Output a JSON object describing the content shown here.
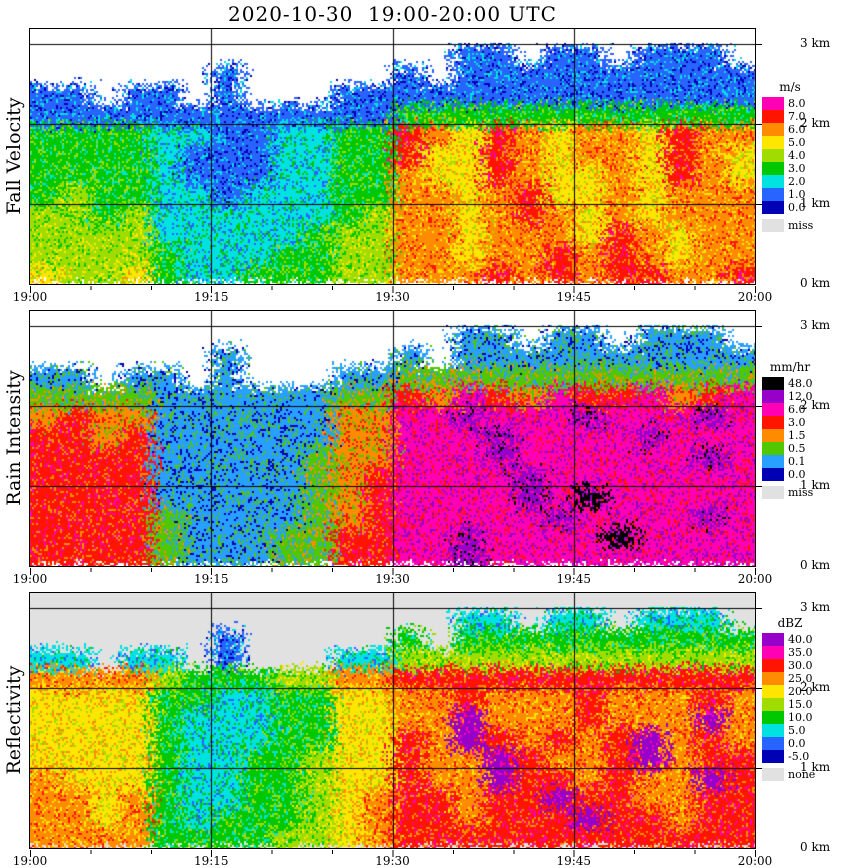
{
  "title": "2020-10-30  19:00-20:00 UTC",
  "chart_data": {
    "type": "heatmap",
    "title": "2020-10-30  19:00-20:00 UTC",
    "x_ticks": [
      "19:00",
      "19:15",
      "19:30",
      "19:45",
      "20:00"
    ],
    "x_minor_tick_interval_min": 5,
    "y_ticks": [
      "3 km",
      "2 km",
      "1 km",
      "0 km"
    ],
    "time_range_minutes": 60,
    "height_range_km": [
      0,
      3.2
    ],
    "grid_cols": 24,
    "grid_rows": 12,
    "col_minutes": 2.5,
    "row_km": 0.25,
    "no_data_value": -99,
    "panels": [
      {
        "name": "fall_velocity",
        "label": "Fall Velocity",
        "units": "m/s",
        "empty_color": "#ffffff",
        "missing_label": "miss",
        "missing_color": "#e1e1e1",
        "legend": [
          {
            "label": "8.0",
            "color": "#ff00b4"
          },
          {
            "label": "7.0",
            "color": "#ff1400"
          },
          {
            "label": "6.0",
            "color": "#ff8c00"
          },
          {
            "label": "5.0",
            "color": "#ffe600"
          },
          {
            "label": "4.0",
            "color": "#a0dc00"
          },
          {
            "label": "3.0",
            "color": "#00c800"
          },
          {
            "label": "2.0",
            "color": "#00e1e1"
          },
          {
            "label": "1.0",
            "color": "#2864ff"
          },
          {
            "label": "0.0",
            "color": "#0000b4"
          }
        ],
        "grid": [
          [
            -99,
            -99,
            -99,
            -99,
            -99,
            -99,
            -99,
            -99,
            -99,
            -99,
            -99,
            -99,
            -99,
            -99,
            1,
            1,
            -99,
            1,
            1,
            -99,
            1,
            1,
            1,
            -99
          ],
          [
            -99,
            -99,
            -99,
            -99,
            -99,
            -99,
            1,
            -99,
            -99,
            -99,
            -99,
            -99,
            1,
            -99,
            1,
            1,
            1,
            1,
            1,
            1,
            1,
            1,
            1,
            1
          ],
          [
            1,
            1,
            -99,
            1,
            1,
            -99,
            1,
            -99,
            -99,
            -99,
            1,
            1,
            1,
            1,
            1,
            1,
            1,
            1,
            1,
            1,
            1,
            1,
            1,
            1
          ],
          [
            1.5,
            1.5,
            1.5,
            1.5,
            1,
            1,
            1,
            1,
            1,
            1,
            1.5,
            1.5,
            3,
            3,
            3,
            3,
            3,
            3,
            3,
            3,
            3,
            3,
            3,
            3
          ],
          [
            3,
            3,
            3,
            3,
            2,
            2,
            1.5,
            1.5,
            2,
            2,
            3,
            3,
            7,
            6,
            5.5,
            7,
            6,
            5.5,
            6,
            6,
            5.5,
            7,
            6.5,
            6
          ],
          [
            3,
            3.5,
            3,
            3.2,
            2,
            1.5,
            1.5,
            1.5,
            2,
            2,
            3,
            3.2,
            7,
            5.5,
            5,
            7,
            6,
            5,
            6,
            6,
            5,
            7,
            6.5,
            5.5
          ],
          [
            3.5,
            3.5,
            3,
            3.5,
            2,
            1.5,
            1.5,
            1.5,
            2,
            2.5,
            3,
            3.5,
            6.5,
            5.5,
            5,
            7,
            6.5,
            5,
            5.5,
            6,
            5,
            7,
            6,
            5.5
          ],
          [
            3.5,
            4,
            3.5,
            3.5,
            2.5,
            2,
            1.5,
            2,
            2,
            2.5,
            3.5,
            3.5,
            6.5,
            6,
            5,
            6.5,
            7,
            5.5,
            5.5,
            6.5,
            5,
            6.5,
            6,
            6
          ],
          [
            4,
            4,
            3.5,
            4,
            2.5,
            2,
            2,
            2,
            2.5,
            2.5,
            3.5,
            4,
            6,
            6.5,
            5,
            6,
            7,
            6,
            5.5,
            6.5,
            5.5,
            6,
            6.5,
            6
          ],
          [
            4,
            4.5,
            4,
            4,
            2.5,
            2,
            2,
            2.5,
            2.5,
            3,
            4,
            4,
            6,
            6.5,
            5.5,
            6,
            6.5,
            6.5,
            5.5,
            7,
            6,
            5.5,
            6.5,
            6
          ],
          [
            4.5,
            4.5,
            4,
            4.5,
            3,
            2.5,
            2,
            2.5,
            3,
            3,
            4,
            4.5,
            6.5,
            6,
            5.5,
            6.5,
            6,
            7,
            6,
            7,
            6.5,
            5.5,
            6,
            6.5
          ],
          [
            5,
            4.5,
            4.5,
            5,
            3,
            2.5,
            2.5,
            3,
            3,
            3,
            4.5,
            4.5,
            6.5,
            6,
            6,
            7,
            6,
            7,
            6.5,
            7,
            7,
            6,
            6,
            7
          ]
        ]
      },
      {
        "name": "rain_intensity",
        "label": "Rain Intensity",
        "units": "mm/hr",
        "empty_color": "#ffffff",
        "missing_label": "miss",
        "missing_color": "#e1e1e1",
        "legend": [
          {
            "label": "48.0",
            "color": "#000000"
          },
          {
            "label": "12.0",
            "color": "#9600c8"
          },
          {
            "label": "6.0",
            "color": "#ff00b4"
          },
          {
            "label": "3.0",
            "color": "#ff1400"
          },
          {
            "label": "1.5",
            "color": "#ff8c00"
          },
          {
            "label": "0.5",
            "color": "#50c800"
          },
          {
            "label": "0.1",
            "color": "#28a0ff"
          },
          {
            "label": "0.0",
            "color": "#0000b4"
          }
        ],
        "grid": [
          [
            -99,
            -99,
            -99,
            -99,
            -99,
            -99,
            -99,
            -99,
            -99,
            -99,
            -99,
            -99,
            -99,
            -99,
            0.3,
            0.3,
            -99,
            0.3,
            0.3,
            -99,
            0.3,
            0.3,
            0.3,
            -99
          ],
          [
            -99,
            -99,
            -99,
            -99,
            -99,
            -99,
            0.2,
            -99,
            -99,
            -99,
            -99,
            -99,
            0.3,
            -99,
            0.3,
            0.3,
            0.3,
            0.3,
            0.3,
            0.3,
            0.3,
            0.3,
            0.3,
            0.3
          ],
          [
            0.3,
            0.3,
            -99,
            0.3,
            0.3,
            -99,
            0.2,
            -99,
            -99,
            -99,
            0.3,
            0.3,
            0.7,
            0.7,
            0.7,
            0.7,
            0.7,
            0.7,
            0.7,
            0.7,
            0.7,
            0.7,
            0.7,
            0.7
          ],
          [
            1,
            1,
            1,
            1,
            0.3,
            0.3,
            0.2,
            0.2,
            0.3,
            0.3,
            1,
            1,
            4,
            2,
            6,
            4,
            2,
            6,
            3,
            4,
            6,
            2,
            4,
            6
          ],
          [
            2.5,
            3.5,
            2.5,
            2,
            0.3,
            0.2,
            0.15,
            0.15,
            0.2,
            0.3,
            1.5,
            2,
            9,
            7,
            14,
            8,
            6,
            9,
            13,
            8,
            7,
            6,
            14,
            8
          ],
          [
            3.5,
            4,
            2.5,
            3,
            0.3,
            0.2,
            0.15,
            0.2,
            0.2,
            0.4,
            1.5,
            2.5,
            9,
            7,
            8,
            14,
            7,
            9,
            8,
            8,
            14,
            7,
            9,
            8
          ],
          [
            4,
            3.5,
            3,
            3.5,
            0.3,
            0.2,
            0.15,
            0.2,
            0.3,
            0.5,
            2,
            2.5,
            9,
            8,
            7,
            14,
            8,
            9,
            7,
            9,
            8,
            7,
            14,
            9
          ],
          [
            4,
            4,
            3.5,
            3.5,
            0.4,
            0.2,
            0.2,
            0.2,
            0.3,
            0.6,
            2,
            3,
            9,
            8,
            7,
            9,
            14,
            8,
            8,
            9,
            7,
            8,
            9,
            8
          ],
          [
            4,
            4.5,
            3.5,
            4,
            0.4,
            0.3,
            0.2,
            0.3,
            0.4,
            0.7,
            2.5,
            3,
            9,
            8,
            8,
            9,
            14,
            9,
            50,
            9,
            8,
            8,
            9,
            9
          ],
          [
            4,
            4.5,
            4,
            4,
            0.5,
            0.3,
            0.2,
            0.3,
            0.4,
            0.8,
            2.5,
            3,
            9,
            9,
            8,
            9,
            8,
            14,
            9,
            9,
            8,
            9,
            14,
            9
          ],
          [
            4.5,
            4,
            4,
            4.5,
            0.5,
            0.3,
            0.3,
            0.4,
            0.5,
            1,
            3,
            3,
            9,
            8,
            14,
            9,
            8,
            9,
            9,
            50,
            9,
            8,
            9,
            9
          ],
          [
            4.5,
            4,
            4,
            4,
            0.6,
            0.4,
            0.3,
            0.4,
            0.6,
            1,
            3,
            3.5,
            9,
            9,
            14,
            9,
            9,
            8,
            9,
            9,
            9,
            9,
            8,
            9
          ]
        ]
      },
      {
        "name": "reflectivity",
        "label": "Reflectivity",
        "units": "dBZ",
        "empty_color": "#e1e1e1",
        "missing_label": "none",
        "missing_color": "#e1e1e1",
        "legend": [
          {
            "label": "40.0",
            "color": "#9600c8"
          },
          {
            "label": "35.0",
            "color": "#ff00b4"
          },
          {
            "label": "30.0",
            "color": "#ff1400"
          },
          {
            "label": "25.0",
            "color": "#ff8c00"
          },
          {
            "label": "20.0",
            "color": "#ffe600"
          },
          {
            "label": "15.0",
            "color": "#a0dc00"
          },
          {
            "label": "10.0",
            "color": "#00c800"
          },
          {
            "label": "5.0",
            "color": "#00e1e1"
          },
          {
            "label": "0.0",
            "color": "#2864ff"
          },
          {
            "label": "-5.0",
            "color": "#0000b4"
          }
        ],
        "grid": [
          [
            -99,
            -99,
            -99,
            -99,
            -99,
            -99,
            -99,
            -99,
            -99,
            -99,
            -99,
            -99,
            -99,
            -99,
            8,
            8,
            -99,
            8,
            8,
            -99,
            8,
            8,
            8,
            -99
          ],
          [
            -99,
            -99,
            -99,
            -99,
            -99,
            -99,
            4,
            -99,
            -99,
            -99,
            -99,
            -99,
            10,
            -99,
            10,
            10,
            10,
            10,
            10,
            10,
            10,
            10,
            10,
            10
          ],
          [
            8,
            8,
            -99,
            8,
            8,
            -99,
            4,
            -99,
            -99,
            -99,
            8,
            8,
            16,
            16,
            16,
            16,
            16,
            16,
            16,
            16,
            16,
            16,
            16,
            16
          ],
          [
            28,
            28,
            27,
            28,
            16,
            14,
            12,
            14,
            16,
            18,
            27,
            28,
            31,
            30,
            32,
            31,
            30,
            32,
            31,
            31,
            32,
            30,
            31,
            32
          ],
          [
            22,
            23,
            21,
            22,
            12,
            10,
            9,
            9,
            10,
            12,
            21,
            22,
            28,
            27,
            30,
            28,
            26,
            29,
            31,
            28,
            27,
            26,
            30,
            28
          ],
          [
            23,
            22,
            20,
            22,
            12,
            9,
            8,
            9,
            10,
            13,
            21,
            23,
            29,
            27,
            41,
            29,
            26,
            29,
            32,
            29,
            27,
            26,
            41,
            29
          ],
          [
            23,
            24,
            21,
            23,
            11,
            9,
            8,
            9,
            11,
            14,
            22,
            23,
            30,
            28,
            41,
            30,
            27,
            30,
            28,
            30,
            41,
            27,
            30,
            29
          ],
          [
            24,
            24,
            22,
            23,
            11,
            9,
            8,
            10,
            11,
            15,
            22,
            24,
            30,
            28,
            29,
            41,
            30,
            29,
            28,
            31,
            41,
            28,
            30,
            30
          ],
          [
            25,
            24,
            23,
            24,
            10,
            8,
            8,
            10,
            12,
            16,
            23,
            24,
            31,
            29,
            28,
            41,
            31,
            30,
            29,
            31,
            29,
            28,
            41,
            30
          ],
          [
            26,
            25,
            23,
            25,
            10,
            8,
            9,
            11,
            13,
            17,
            23,
            25,
            31,
            30,
            29,
            31,
            30,
            41,
            30,
            32,
            29,
            29,
            31,
            31
          ],
          [
            27,
            26,
            24,
            26,
            11,
            9,
            10,
            12,
            14,
            18,
            24,
            25,
            32,
            30,
            29,
            32,
            31,
            30,
            41,
            32,
            30,
            29,
            31,
            32
          ],
          [
            27,
            26,
            25,
            26,
            12,
            10,
            11,
            13,
            15,
            19,
            24,
            26,
            32,
            31,
            30,
            32,
            31,
            30,
            32,
            33,
            31,
            30,
            32,
            32
          ]
        ]
      }
    ]
  }
}
